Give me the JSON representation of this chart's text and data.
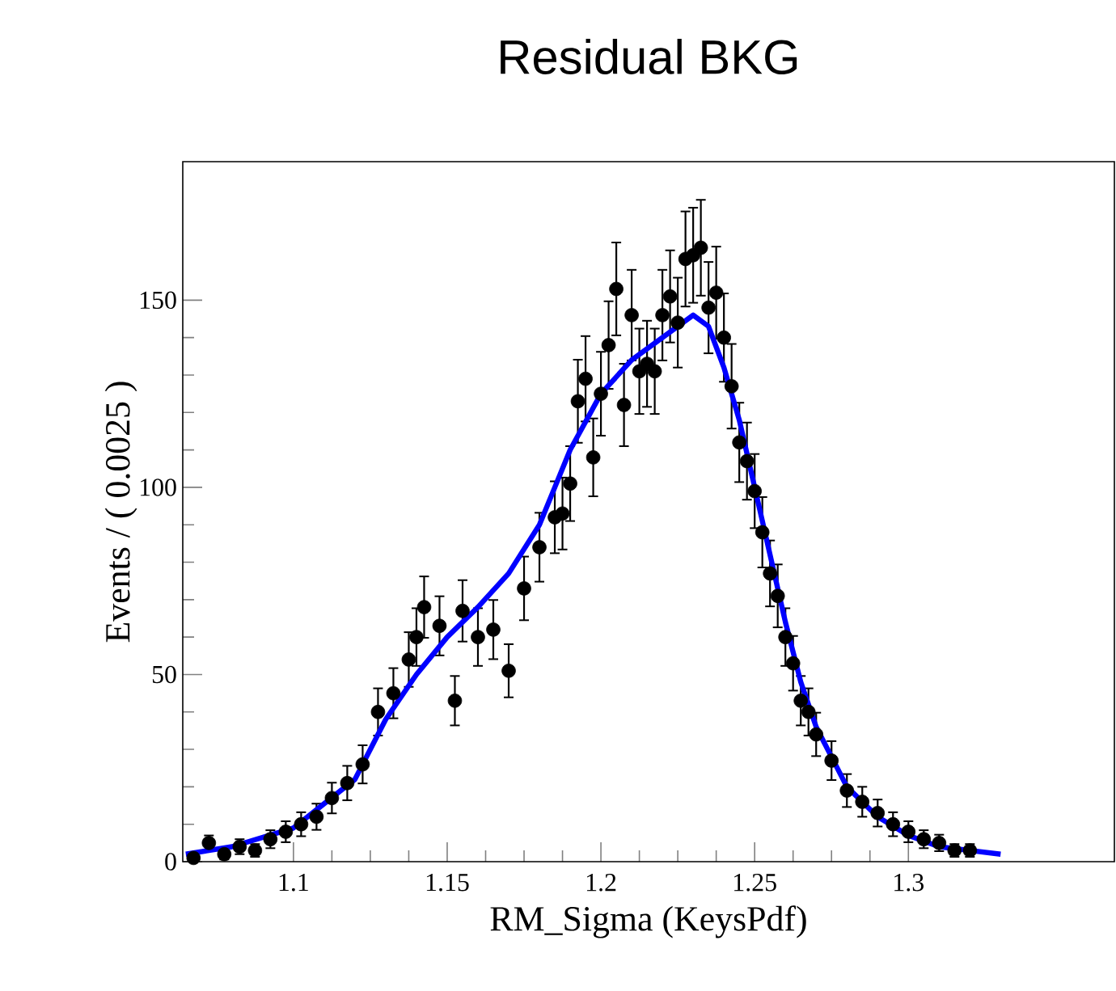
{
  "chart_data": {
    "type": "scatter",
    "title": "Residual BKG",
    "xlabel": "RM_Sigma (KeysPdf)",
    "ylabel": "Events / ( 0.0025 )",
    "xlim": [
      1.064,
      1.367
    ],
    "ylim": [
      0,
      187
    ],
    "xticks": [
      1.1,
      1.15,
      1.2,
      1.25,
      1.3
    ],
    "yticks": [
      0,
      50,
      100,
      150
    ],
    "series": [
      {
        "color": "#000000",
        "marker": "circle",
        "x": [
          1.0675,
          1.0725,
          1.0775,
          1.0825,
          1.0875,
          1.0925,
          1.0975,
          1.1025,
          1.1075,
          1.1125,
          1.1175,
          1.1225,
          1.1275,
          1.1325,
          1.1375,
          1.14,
          1.1425,
          1.1475,
          1.1525,
          1.155,
          1.16,
          1.165,
          1.17,
          1.175,
          1.18,
          1.185,
          1.1875,
          1.19,
          1.1925,
          1.195,
          1.1975,
          1.2,
          1.2025,
          1.205,
          1.2075,
          1.21,
          1.2125,
          1.215,
          1.2175,
          1.22,
          1.2225,
          1.225,
          1.2275,
          1.23,
          1.2325,
          1.235,
          1.2375,
          1.24,
          1.2425,
          1.245,
          1.2475,
          1.25,
          1.2525,
          1.255,
          1.2575,
          1.26,
          1.2625,
          1.265,
          1.2675,
          1.27,
          1.275,
          1.28,
          1.285,
          1.29,
          1.295,
          1.3,
          1.305,
          1.31,
          1.315,
          1.32
        ],
        "values": [
          1,
          5,
          2,
          4,
          3,
          6,
          8,
          10,
          12,
          17,
          21,
          26,
          40,
          45,
          54,
          60,
          68,
          63,
          43,
          67,
          60,
          62,
          51,
          73,
          84,
          92,
          93,
          101,
          123,
          129,
          108,
          125,
          138,
          153,
          122,
          146,
          131,
          133,
          131,
          146,
          151,
          144,
          161,
          162,
          164,
          148,
          152,
          140,
          127,
          112,
          107,
          99,
          88,
          77,
          71,
          60,
          53,
          43,
          40,
          34,
          27,
          19,
          16,
          13,
          10,
          8,
          6,
          5,
          3,
          3
        ],
        "errors": [
          1,
          2,
          1.4,
          2,
          1.7,
          2.4,
          2.8,
          3.2,
          3.5,
          4.1,
          4.6,
          5.1,
          6.3,
          6.7,
          7.3,
          7.7,
          8.2,
          7.9,
          6.6,
          8.2,
          7.7,
          7.9,
          7.1,
          8.5,
          9.2,
          9.6,
          9.6,
          10,
          11.1,
          11.4,
          10.4,
          11.2,
          11.7,
          12.4,
          11,
          12.1,
          11.4,
          11.5,
          11.4,
          12.1,
          12.3,
          12,
          12.7,
          12.7,
          12.8,
          12.2,
          12.3,
          11.8,
          11.3,
          10.6,
          10.3,
          9.9,
          9.4,
          8.8,
          8.4,
          7.7,
          7.3,
          6.6,
          6.3,
          5.8,
          5.2,
          4.4,
          4,
          3.6,
          3.2,
          2.8,
          2.4,
          2.2,
          1.7,
          1.7
        ]
      },
      {
        "type": "line",
        "color": "#0000ff",
        "marker": "none",
        "x": [
          1.065,
          1.08,
          1.1,
          1.12,
          1.13,
          1.14,
          1.15,
          1.16,
          1.17,
          1.18,
          1.185,
          1.19,
          1.2,
          1.21,
          1.22,
          1.23,
          1.235,
          1.24,
          1.245,
          1.25,
          1.255,
          1.26,
          1.265,
          1.27,
          1.28,
          1.29,
          1.3,
          1.31,
          1.32,
          1.33
        ],
        "values": [
          2,
          4,
          9,
          22,
          38,
          50,
          60,
          68,
          77,
          90,
          100,
          110,
          125,
          134,
          140,
          146,
          143,
          132,
          118,
          100,
          82,
          64,
          48,
          36,
          20,
          12,
          7,
          4,
          3,
          2
        ]
      }
    ]
  }
}
